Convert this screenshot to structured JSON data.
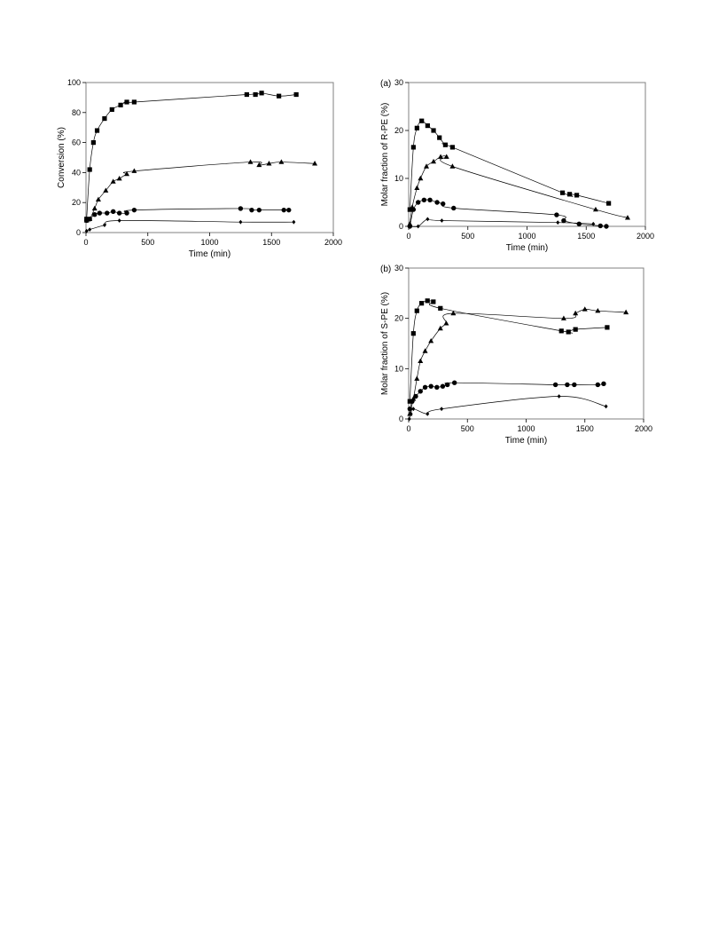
{
  "chart_data": [
    {
      "type": "line",
      "panel_label": "",
      "xlabel": "Time (min)",
      "ylabel": "Conversion (%)",
      "xlim": [
        0,
        2000
      ],
      "ylim": [
        0,
        100
      ],
      "xticks": [
        0,
        500,
        1000,
        1500,
        2000
      ],
      "yticks": [
        0,
        20,
        40,
        60,
        80,
        100
      ],
      "grid": false,
      "series": [
        {
          "marker": "square",
          "points": [
            [
              5,
              9
            ],
            [
              30,
              42
            ],
            [
              60,
              60
            ],
            [
              90,
              68
            ],
            [
              150,
              76
            ],
            [
              210,
              82
            ],
            [
              280,
              85
            ],
            [
              330,
              87
            ],
            [
              390,
              87
            ],
            [
              1300,
              92
            ],
            [
              1370,
              92
            ],
            [
              1420,
              93
            ],
            [
              1560,
              91
            ],
            [
              1700,
              92
            ]
          ]
        },
        {
          "marker": "triangle",
          "points": [
            [
              5,
              8
            ],
            [
              30,
              9
            ],
            [
              70,
              16
            ],
            [
              100,
              22
            ],
            [
              160,
              28
            ],
            [
              220,
              34
            ],
            [
              270,
              36
            ],
            [
              330,
              39
            ],
            [
              390,
              41
            ],
            [
              1330,
              47
            ],
            [
              1400,
              45
            ],
            [
              1480,
              46
            ],
            [
              1580,
              47
            ],
            [
              1850,
              46
            ]
          ]
        },
        {
          "marker": "circle",
          "points": [
            [
              5,
              8
            ],
            [
              30,
              9
            ],
            [
              70,
              12
            ],
            [
              110,
              13
            ],
            [
              170,
              13
            ],
            [
              220,
              14
            ],
            [
              270,
              13
            ],
            [
              330,
              13
            ],
            [
              390,
              15
            ],
            [
              1250,
              16
            ],
            [
              1340,
              15
            ],
            [
              1400,
              15
            ],
            [
              1600,
              15
            ],
            [
              1640,
              15
            ]
          ]
        },
        {
          "marker": "diamond",
          "points": [
            [
              5,
              1
            ],
            [
              30,
              2
            ],
            [
              150,
              5
            ],
            [
              270,
              8
            ],
            [
              1250,
              7
            ],
            [
              1680,
              7
            ]
          ]
        }
      ]
    },
    {
      "type": "line",
      "panel_label": "(a)",
      "xlabel": "Time (min)",
      "ylabel": "Molar fraction of R-PE (%)",
      "xlim": [
        0,
        2000
      ],
      "ylim": [
        0,
        30
      ],
      "xticks": [
        0,
        500,
        1000,
        1500,
        2000
      ],
      "yticks": [
        0,
        10,
        20,
        30
      ],
      "grid": false,
      "series": [
        {
          "marker": "square",
          "points": [
            [
              10,
              3.5
            ],
            [
              40,
              16.5
            ],
            [
              70,
              20.5
            ],
            [
              110,
              22
            ],
            [
              160,
              21
            ],
            [
              210,
              20
            ],
            [
              260,
              18.5
            ],
            [
              310,
              17
            ],
            [
              370,
              16.5
            ],
            [
              1300,
              7
            ],
            [
              1360,
              6.7
            ],
            [
              1420,
              6.5
            ],
            [
              1690,
              4.8
            ]
          ]
        },
        {
          "marker": "triangle",
          "points": [
            [
              10,
              0.5
            ],
            [
              30,
              4
            ],
            [
              70,
              8
            ],
            [
              100,
              10
            ],
            [
              150,
              12.5
            ],
            [
              210,
              13.5
            ],
            [
              270,
              14.5
            ],
            [
              320,
              14.5
            ],
            [
              370,
              12.5
            ],
            [
              1580,
              3.5
            ],
            [
              1850,
              1.8
            ]
          ]
        },
        {
          "marker": "circle",
          "points": [
            [
              10,
              0
            ],
            [
              40,
              3.5
            ],
            [
              80,
              5
            ],
            [
              130,
              5.5
            ],
            [
              180,
              5.5
            ],
            [
              240,
              5
            ],
            [
              290,
              4.7
            ],
            [
              380,
              3.8
            ],
            [
              1250,
              2.4
            ],
            [
              1310,
              1.2
            ],
            [
              1440,
              0.5
            ],
            [
              1620,
              0.1
            ],
            [
              1670,
              0
            ]
          ]
        },
        {
          "marker": "diamond",
          "points": [
            [
              10,
              0
            ],
            [
              80,
              0
            ],
            [
              160,
              1.5
            ],
            [
              280,
              1.2
            ],
            [
              1260,
              0.8
            ],
            [
              1560,
              0.5
            ]
          ]
        }
      ]
    },
    {
      "type": "line",
      "panel_label": "(b)",
      "xlabel": "Time (min)",
      "ylabel": "Molar fraction of S-PE (%)",
      "xlim": [
        0,
        2000
      ],
      "ylim": [
        0,
        30
      ],
      "xticks": [
        0,
        500,
        1000,
        1500,
        2000
      ],
      "yticks": [
        0,
        10,
        20,
        30
      ],
      "grid": false,
      "series": [
        {
          "marker": "square",
          "points": [
            [
              10,
              3.5
            ],
            [
              40,
              17
            ],
            [
              70,
              21.5
            ],
            [
              110,
              23
            ],
            [
              160,
              23.5
            ],
            [
              210,
              23.3
            ],
            [
              270,
              22
            ],
            [
              1300,
              17.5
            ],
            [
              1360,
              17.3
            ],
            [
              1420,
              17.8
            ],
            [
              1690,
              18.2
            ]
          ]
        },
        {
          "marker": "triangle",
          "points": [
            [
              10,
              1
            ],
            [
              40,
              4
            ],
            [
              70,
              8
            ],
            [
              100,
              11.5
            ],
            [
              140,
              13.5
            ],
            [
              190,
              15.5
            ],
            [
              270,
              18
            ],
            [
              320,
              19
            ],
            [
              380,
              21
            ],
            [
              1320,
              20
            ],
            [
              1420,
              21
            ],
            [
              1500,
              21.8
            ],
            [
              1610,
              21.5
            ],
            [
              1850,
              21.2
            ]
          ]
        },
        {
          "marker": "circle",
          "points": [
            [
              10,
              2
            ],
            [
              30,
              3.5
            ],
            [
              60,
              4.5
            ],
            [
              100,
              5.5
            ],
            [
              140,
              6.3
            ],
            [
              190,
              6.5
            ],
            [
              240,
              6.3
            ],
            [
              290,
              6.5
            ],
            [
              330,
              6.8
            ],
            [
              390,
              7.2
            ],
            [
              1250,
              6.8
            ],
            [
              1350,
              6.8
            ],
            [
              1410,
              6.8
            ],
            [
              1610,
              6.8
            ],
            [
              1660,
              7
            ]
          ]
        },
        {
          "marker": "diamond",
          "points": [
            [
              5,
              0
            ],
            [
              20,
              1
            ],
            [
              40,
              2
            ],
            [
              160,
              1
            ],
            [
              280,
              2
            ],
            [
              1280,
              4.5
            ],
            [
              1680,
              2.5
            ]
          ]
        }
      ]
    }
  ]
}
